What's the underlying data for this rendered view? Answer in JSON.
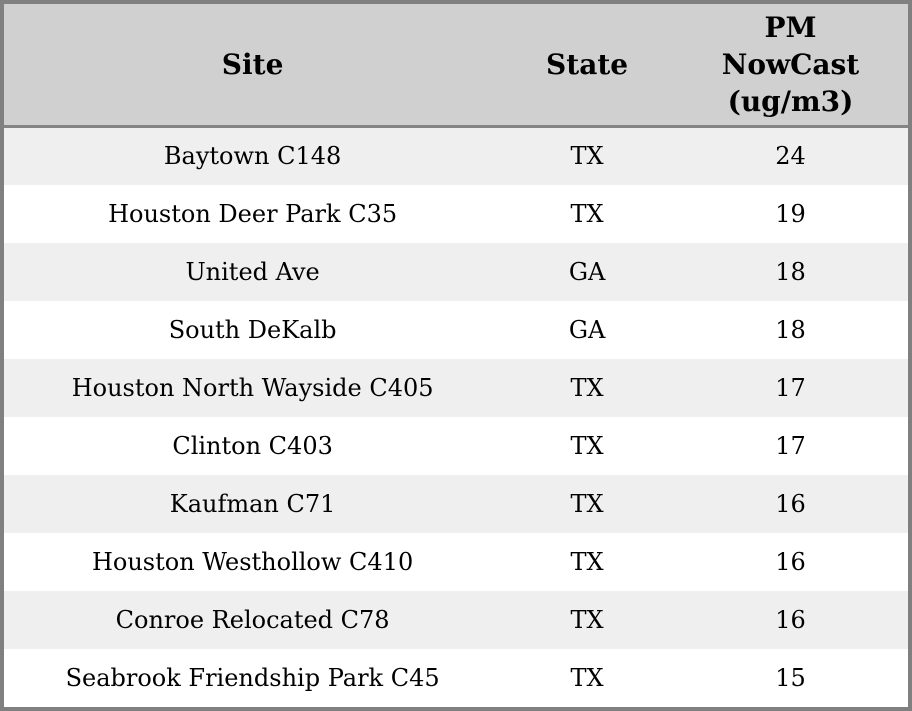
{
  "table": {
    "columns": [
      {
        "label": "Site"
      },
      {
        "label": "State"
      },
      {
        "label": "PM NowCast (ug/m3)"
      }
    ],
    "rows": [
      {
        "site": "Baytown C148",
        "state": "TX",
        "pm_nowcast": "24"
      },
      {
        "site": "Houston Deer Park C35",
        "state": "TX",
        "pm_nowcast": "19"
      },
      {
        "site": "United Ave",
        "state": "GA",
        "pm_nowcast": "18"
      },
      {
        "site": "South DeKalb",
        "state": "GA",
        "pm_nowcast": "18"
      },
      {
        "site": "Houston North Wayside C405",
        "state": "TX",
        "pm_nowcast": "17"
      },
      {
        "site": "Clinton C403",
        "state": "TX",
        "pm_nowcast": "17"
      },
      {
        "site": "Kaufman C71",
        "state": "TX",
        "pm_nowcast": "16"
      },
      {
        "site": "Houston Westhollow C410",
        "state": "TX",
        "pm_nowcast": "16"
      },
      {
        "site": "Conroe Relocated C78",
        "state": "TX",
        "pm_nowcast": "16"
      },
      {
        "site": "Seabrook Friendship Park C45",
        "state": "TX",
        "pm_nowcast": "15"
      }
    ]
  },
  "colors": {
    "header_bg": "#d0d0d0",
    "row_alt_bg": "#efefef",
    "row_bg": "#ffffff",
    "frame_border": "#808080",
    "header_divider": "#848484",
    "text": "#000000"
  },
  "chart_data": {
    "type": "table",
    "title": "",
    "columns": [
      "Site",
      "State",
      "PM NowCast (ug/m3)"
    ],
    "rows": [
      [
        "Baytown C148",
        "TX",
        24
      ],
      [
        "Houston Deer Park C35",
        "TX",
        19
      ],
      [
        "United Ave",
        "GA",
        18
      ],
      [
        "South DeKalb",
        "GA",
        18
      ],
      [
        "Houston North Wayside C405",
        "TX",
        17
      ],
      [
        "Clinton C403",
        "TX",
        17
      ],
      [
        "Kaufman C71",
        "TX",
        16
      ],
      [
        "Houston Westhollow C410",
        "TX",
        16
      ],
      [
        "Conroe Relocated C78",
        "TX",
        16
      ],
      [
        "Seabrook Friendship Park C45",
        "TX",
        15
      ]
    ]
  }
}
